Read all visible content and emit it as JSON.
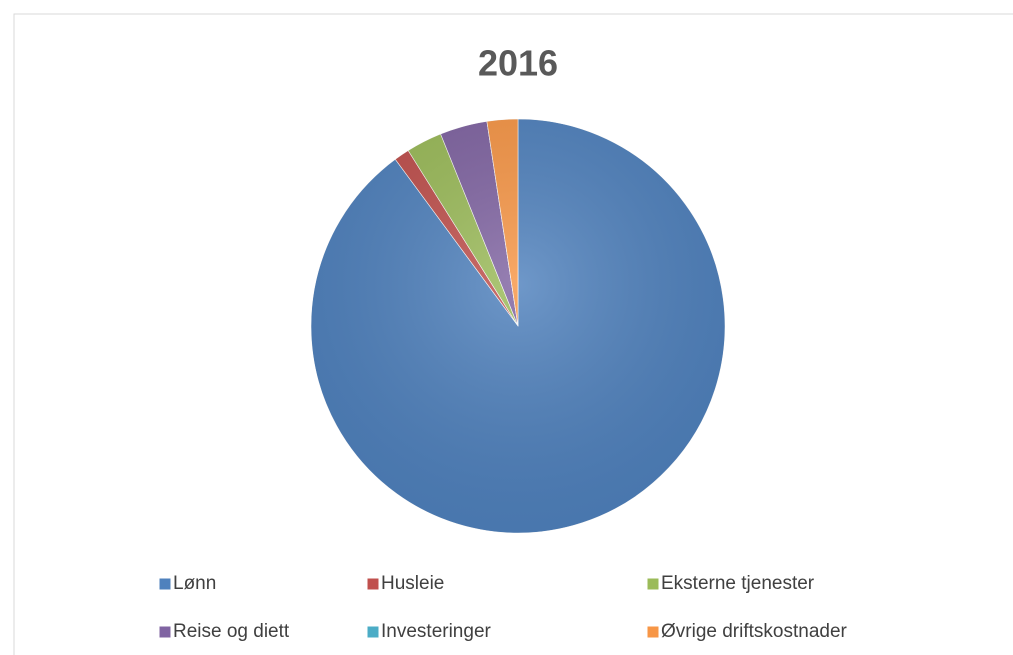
{
  "chart_data": {
    "type": "pie",
    "title": "2016",
    "categories": [
      "Lønn",
      "Husleie",
      "Eksterne tjenester",
      "Reise og diett",
      "Investeringer",
      "Øvrige driftskostnader"
    ],
    "values": [
      89.9,
      1.2,
      2.8,
      3.7,
      0,
      2.4
    ],
    "colors": [
      "#4f81bd",
      "#c0504d",
      "#9bbb59",
      "#8064a2",
      "#4bacc6",
      "#f79646"
    ],
    "legend": "bottom"
  }
}
